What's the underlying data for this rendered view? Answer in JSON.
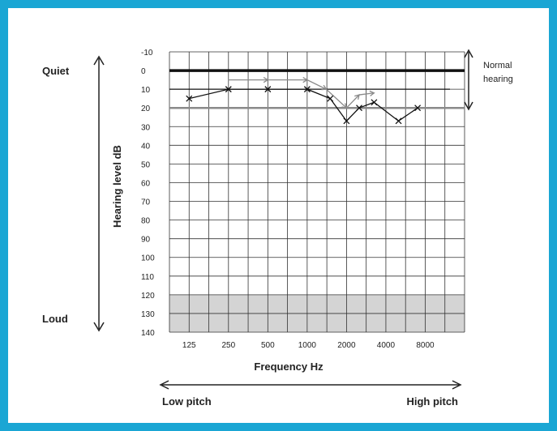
{
  "colors": {
    "border": "#1aa6d4",
    "shade": "#d4d4d4",
    "grid": "#333333",
    "series": "#111111",
    "series_faint": "#8a8a8a"
  },
  "labels": {
    "quiet": "Quiet",
    "loud": "Loud",
    "ylabel": "Hearing level dB",
    "xlabel": "Frequency Hz",
    "normal_1": "Normal",
    "normal_2": "hearing",
    "low_pitch": "Low pitch",
    "high_pitch": "High pitch"
  },
  "chart_data": {
    "type": "line",
    "ylabel": "Hearing level dB",
    "xlabel": "Frequency Hz",
    "y_ticks": [
      "-10",
      "0",
      "10",
      "20",
      "30",
      "40",
      "50",
      "60",
      "70",
      "80",
      "90",
      "100",
      "110",
      "120",
      "130",
      "140"
    ],
    "x_ticks": [
      "125",
      "250",
      "500",
      "1000",
      "2000",
      "4000",
      "8000"
    ],
    "x_ticks_hz": [
      125,
      250,
      500,
      1000,
      2000,
      4000,
      8000
    ],
    "x_scale": "log",
    "ylim": [
      -10,
      140
    ],
    "y_inverted": true,
    "grid": true,
    "shaded_band_db": [
      120,
      140
    ],
    "reference_lines_db": [
      0,
      10,
      20
    ],
    "normal_hearing_range_db": [
      -5,
      25
    ],
    "series": [
      {
        "marker": "X",
        "points": [
          {
            "hz": 125,
            "db": 15
          },
          {
            "hz": 250,
            "db": 10
          },
          {
            "hz": 500,
            "db": 10
          },
          {
            "hz": 1000,
            "db": 10
          },
          {
            "hz": 1500,
            "db": 15
          },
          {
            "hz": 2000,
            "db": 27
          },
          {
            "hz": 2500,
            "db": 20
          },
          {
            "hz": 3250,
            "db": 17
          },
          {
            "hz": 5000,
            "db": 27
          },
          {
            "hz": 7000,
            "db": 20
          }
        ]
      },
      {
        "marker": "arrow",
        "points": [
          {
            "hz": 250,
            "db": 5
          },
          {
            "hz": 500,
            "db": 5
          },
          {
            "hz": 1000,
            "db": 5
          },
          {
            "hz": 1400,
            "db": 10
          },
          {
            "hz": 2000,
            "db": 20
          },
          {
            "hz": 2500,
            "db": 13
          },
          {
            "hz": 3250,
            "db": 12
          }
        ]
      }
    ]
  }
}
